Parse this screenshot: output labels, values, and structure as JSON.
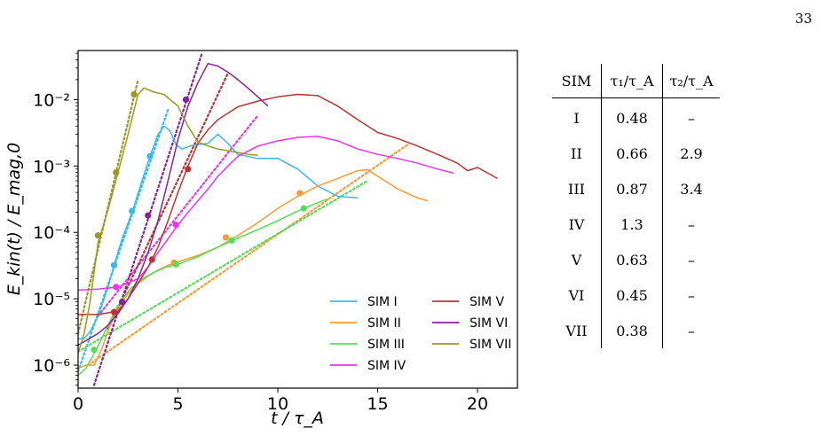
{
  "page": {
    "number": "33"
  },
  "chart_data": {
    "type": "line",
    "xlabel": "t / τ_A",
    "ylabel": "E_kin(t) / E_mag,0",
    "xlim": [
      0,
      22
    ],
    "ylim": [
      4.5e-07,
      0.055
    ],
    "yscale": "log",
    "x_ticks": [
      0,
      5,
      10,
      15,
      20
    ],
    "x_tick_labels": [
      "0",
      "5",
      "10",
      "15",
      "20"
    ],
    "y_ticks": [
      1e-06,
      1e-05,
      0.0001,
      0.001,
      0.01
    ],
    "y_tick_labels": [
      "10⁻⁶",
      "10⁻⁵",
      "10⁻⁴",
      "10⁻³",
      "10⁻²"
    ],
    "grid": false,
    "legend_position": "lower-right",
    "series": [
      {
        "name": "SIM I",
        "color": "#33bbee",
        "x": [
          0.0,
          0.3,
          0.6,
          1.0,
          1.5,
          1.8,
          2.2,
          2.7,
          3.2,
          3.6,
          4.0,
          4.3,
          4.6,
          4.9,
          5.2,
          5.6,
          6.0,
          6.5,
          7.0,
          7.5,
          8.0,
          9.0,
          10.0,
          11.0,
          12.0,
          13.0,
          14.0
        ],
        "y": [
          2.5e-06,
          2.5e-06,
          3.2e-06,
          5.5e-06,
          1.5e-05,
          3.2e-05,
          8e-05,
          0.0002,
          0.0006,
          0.0014,
          0.003,
          0.004,
          0.0034,
          0.0021,
          0.0018,
          0.002,
          0.0021,
          0.0022,
          0.003,
          0.0022,
          0.0015,
          0.0013,
          0.0013,
          0.0009,
          0.0005,
          0.00035,
          0.00033
        ]
      },
      {
        "name": "SIM II",
        "color": "#ff9a33",
        "x": [
          0.0,
          0.4,
          0.8,
          1.2,
          1.6,
          2.0,
          2.5,
          3.0,
          3.5,
          4.0,
          4.5,
          5.0,
          6.0,
          7.0,
          8.0,
          9.0,
          10.0,
          11.0,
          12.0,
          13.0,
          14.0,
          14.5,
          15.0,
          16.0,
          17.0,
          17.5
        ],
        "y": [
          9e-07,
          1e-06,
          1e-06,
          1.8e-06,
          4e-06,
          7e-06,
          1.2e-05,
          1.7e-05,
          2.2e-05,
          2.7e-05,
          3.2e-05,
          3.6e-05,
          4.5e-05,
          6e-05,
          9e-05,
          0.00014,
          0.00023,
          0.00035,
          0.0005,
          0.00065,
          0.00085,
          0.00088,
          0.0007,
          0.00045,
          0.00033,
          0.0003
        ]
      },
      {
        "name": "SIM III",
        "color": "#55dd55",
        "x": [
          0.0,
          0.4,
          0.9,
          1.5,
          2.0,
          2.6,
          3.2,
          3.8,
          4.4,
          5.0,
          6.0,
          7.0,
          8.0,
          9.0,
          10.0,
          11.0,
          12.0,
          12.5
        ],
        "y": [
          7e-07,
          9e-07,
          1.7e-06,
          4e-06,
          8e-06,
          1.4e-05,
          2e-05,
          2.5e-05,
          3e-05,
          3.3e-05,
          4.3e-05,
          6e-05,
          8.2e-05,
          0.00011,
          0.00015,
          0.00021,
          0.00028,
          0.00032
        ]
      },
      {
        "name": "SIM IV",
        "color": "#ee33ee",
        "x": [
          0.0,
          1.0,
          2.0,
          3.0,
          3.5,
          4.0,
          4.5,
          5.0,
          5.5,
          6.0,
          6.5,
          7.0,
          7.5,
          8.0,
          9.0,
          10.0,
          11.0,
          12.0,
          13.0,
          14.0,
          15.0,
          16.0,
          17.0,
          18.0,
          18.8
        ],
        "y": [
          1.35e-05,
          1.4e-05,
          1.5e-05,
          2e-05,
          3e-05,
          5e-05,
          8e-05,
          0.00013,
          0.0002,
          0.0003,
          0.00045,
          0.0007,
          0.001,
          0.0014,
          0.002,
          0.0024,
          0.0027,
          0.0028,
          0.0024,
          0.0018,
          0.0015,
          0.0013,
          0.0011,
          0.0009,
          0.00078
        ]
      },
      {
        "name": "SIM V",
        "color": "#bb3333",
        "x": [
          0.0,
          1.0,
          2.0,
          2.5,
          3.0,
          3.5,
          4.0,
          4.5,
          5.0,
          5.5,
          6.0,
          6.5,
          7.0,
          8.0,
          9.0,
          10.0,
          11.0,
          12.0,
          13.0,
          14.0,
          15.0,
          16.0,
          17.0,
          18.0,
          19.0,
          19.5,
          20.0,
          21.0
        ],
        "y": [
          5.8e-06,
          5.8e-06,
          6.5e-06,
          1e-05,
          1.7e-05,
          3e-05,
          6e-05,
          0.00015,
          0.0004,
          0.001,
          0.0022,
          0.0035,
          0.005,
          0.0078,
          0.0095,
          0.011,
          0.012,
          0.0115,
          0.008,
          0.005,
          0.0032,
          0.0026,
          0.002,
          0.0015,
          0.0011,
          0.00085,
          0.00095,
          0.00065
        ]
      },
      {
        "name": "SIM VI",
        "color": "#882299",
        "x": [
          0.0,
          1.0,
          1.5,
          2.0,
          2.5,
          3.0,
          3.5,
          4.0,
          4.5,
          5.0,
          5.5,
          6.0,
          6.5,
          7.0,
          7.5,
          8.0,
          8.5,
          9.0,
          9.5
        ],
        "y": [
          2e-06,
          3e-06,
          4e-06,
          6e-06,
          1e-05,
          2e-05,
          5e-05,
          0.00015,
          0.0006,
          0.0025,
          0.008,
          0.018,
          0.035,
          0.032,
          0.026,
          0.02,
          0.015,
          0.011,
          0.008
        ]
      },
      {
        "name": "SIM VII",
        "color": "#999922",
        "x": [
          0.0,
          0.3,
          0.6,
          1.0,
          1.5,
          2.0,
          2.5,
          3.0,
          3.3,
          3.8,
          4.3,
          5.0,
          5.5,
          6.0,
          6.5,
          7.0,
          7.5,
          8.0,
          8.5,
          9.0
        ],
        "y": [
          1.5e-06,
          3e-06,
          9e-06,
          7e-05,
          0.00022,
          0.0008,
          0.003,
          0.012,
          0.015,
          0.013,
          0.012,
          0.008,
          0.004,
          0.0023,
          0.002,
          0.0018,
          0.0017,
          0.0016,
          0.0015,
          0.00145
        ]
      }
    ],
    "fits": [
      {
        "color": "#33bbee",
        "x": [
          0.0,
          4.5
        ],
        "y": [
          8e-07,
          0.007
        ],
        "dots_x": [
          1.8,
          2.7,
          3.6
        ],
        "dots_y": [
          3.2e-05,
          0.00021,
          0.0014
        ]
      },
      {
        "color": "#ff9a33",
        "x": [
          0.5,
          16.5
        ],
        "y": [
          1e-06,
          0.0021
        ],
        "dots_x": [
          4.8,
          7.4,
          11.1
        ],
        "dots_y": [
          3.5e-05,
          8.4e-05,
          0.00039
        ]
      },
      {
        "color": "#55dd55",
        "x": [
          0.0,
          14.5
        ],
        "y": [
          1.6e-06,
          0.0006
        ],
        "dots_x": [
          0.8,
          4.9,
          7.7,
          11.3
        ],
        "dots_y": [
          1.7e-06,
          3.3e-05,
          7.6e-05,
          0.00023
        ]
      },
      {
        "color": "#ee33ee",
        "x": [
          1.0,
          9.0
        ],
        "y": [
          5.5e-06,
          0.0058
        ],
        "dots_x": [
          1.9,
          4.9
        ],
        "dots_y": [
          1.5e-05,
          0.00013
        ]
      },
      {
        "color": "#bb3333",
        "x": [
          1.5,
          7.5
        ],
        "y": [
          3.5e-06,
          0.025
        ],
        "dots_x": [
          1.8,
          3.7,
          5.5
        ],
        "dots_y": [
          6.3e-06,
          3.9e-05,
          0.0009
        ]
      },
      {
        "color": "#882299",
        "x": [
          0.8,
          6.2
        ],
        "y": [
          5e-07,
          0.05
        ],
        "dots_x": [
          2.2,
          3.5,
          5.4
        ],
        "dots_y": [
          9e-06,
          0.00018,
          0.01
        ]
      },
      {
        "color": "#999922",
        "x": [
          0.0,
          3.0
        ],
        "y": [
          3e-06,
          0.02
        ],
        "dots_x": [
          1.0,
          1.9,
          2.8
        ],
        "dots_y": [
          9e-05,
          0.0008,
          0.012
        ]
      }
    ]
  },
  "table": {
    "headers": [
      "SIM",
      "τ₁/τ_A",
      "τ₂/τ_A"
    ],
    "rows": [
      [
        "I",
        "0.48",
        "–"
      ],
      [
        "II",
        "0.66",
        "2.9"
      ],
      [
        "III",
        "0.87",
        "3.4"
      ],
      [
        "IV",
        "1.3",
        "–"
      ],
      [
        "V",
        "0.63",
        "–"
      ],
      [
        "VI",
        "0.45",
        "–"
      ],
      [
        "VII",
        "0.38",
        "–"
      ]
    ]
  }
}
